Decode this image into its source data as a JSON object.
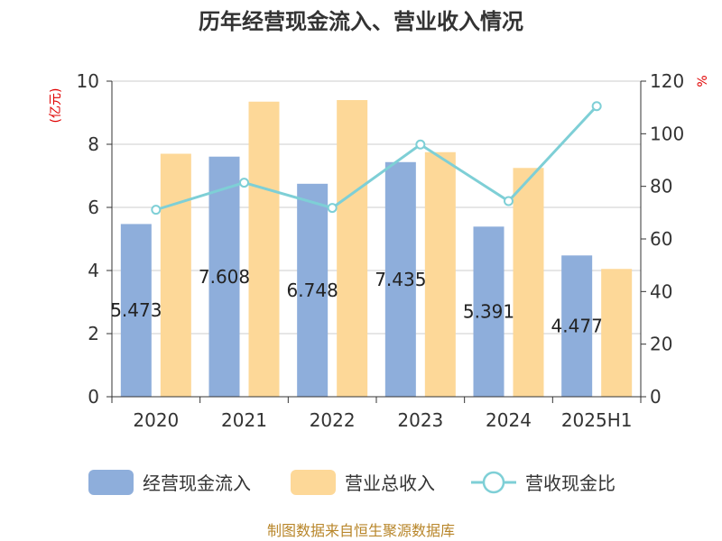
{
  "title": "历年经营现金流入、营业收入情况",
  "source": "制图数据来自恒生聚源数据库",
  "colors": {
    "cash_inflow": "#8eaedb",
    "revenue": "#fdd898",
    "ratio": "#7ecfd6",
    "unit_text": "#e00000",
    "source_text": "#b8862a"
  },
  "chart_data": {
    "type": "bar",
    "title": "历年经营现金流入、营业收入情况",
    "categories": [
      "2020",
      "2021",
      "2022",
      "2023",
      "2024",
      "2025H1"
    ],
    "y_left": {
      "unit": "(亿元)",
      "ylim": [
        0,
        10
      ],
      "ticks": [
        0,
        2,
        4,
        6,
        8,
        10
      ]
    },
    "y_right": {
      "unit": "%",
      "ylim": [
        0,
        120
      ],
      "ticks": [
        0,
        20,
        40,
        60,
        80,
        100,
        120
      ]
    },
    "series": [
      {
        "name": "经营现金流入",
        "type": "bar",
        "axis": "left",
        "values": [
          5.473,
          7.608,
          6.748,
          7.435,
          5.391,
          4.477
        ],
        "labels": [
          "5.473",
          "7.608",
          "6.748",
          "7.435",
          "5.391",
          "4.477"
        ]
      },
      {
        "name": "营业总收入",
        "type": "bar",
        "axis": "left",
        "values": [
          7.7,
          9.35,
          9.4,
          7.75,
          7.25,
          4.05
        ]
      },
      {
        "name": "营收现金比",
        "type": "line",
        "axis": "right",
        "values": [
          71.1,
          81.4,
          71.8,
          95.9,
          74.4,
          110.5
        ]
      }
    ],
    "grid": true,
    "legend_position": "bottom"
  }
}
